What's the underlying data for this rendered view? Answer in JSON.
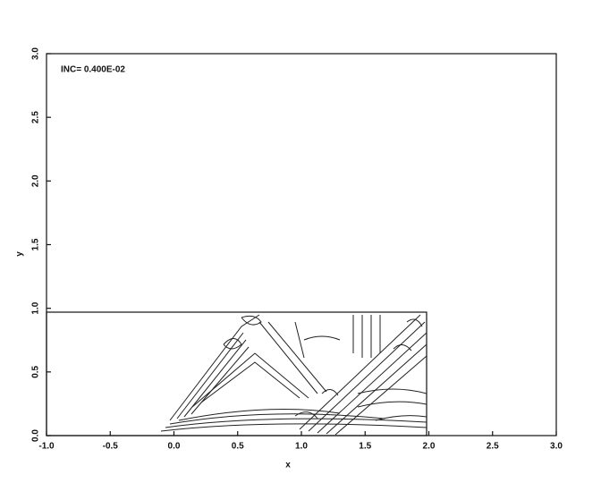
{
  "chart_data": {
    "type": "contour",
    "annotation": "INC= 0.400E-02",
    "x_label": "x",
    "y_label": "y",
    "xlim": [
      -1.0,
      3.0
    ],
    "ylim": [
      0.0,
      3.0
    ],
    "xticks": [
      {
        "value": -1.0,
        "label": "-1.0"
      },
      -0.5,
      {
        "value": 0.0,
        "label": "0.0"
      },
      0.5,
      {
        "value": 1.0,
        "label": "1.0"
      },
      1.5,
      {
        "value": 2.0,
        "label": "2.0"
      },
      2.5,
      {
        "value": 3.0,
        "label": "3.0"
      }
    ],
    "yticks": [
      {
        "value": 0.0,
        "label": "0.0"
      },
      0.5,
      {
        "value": 1.0,
        "label": "1.0"
      },
      1.5,
      {
        "value": 2.0,
        "label": "2.0"
      },
      2.5,
      {
        "value": 3.0,
        "label": "3.0"
      }
    ]
  }
}
